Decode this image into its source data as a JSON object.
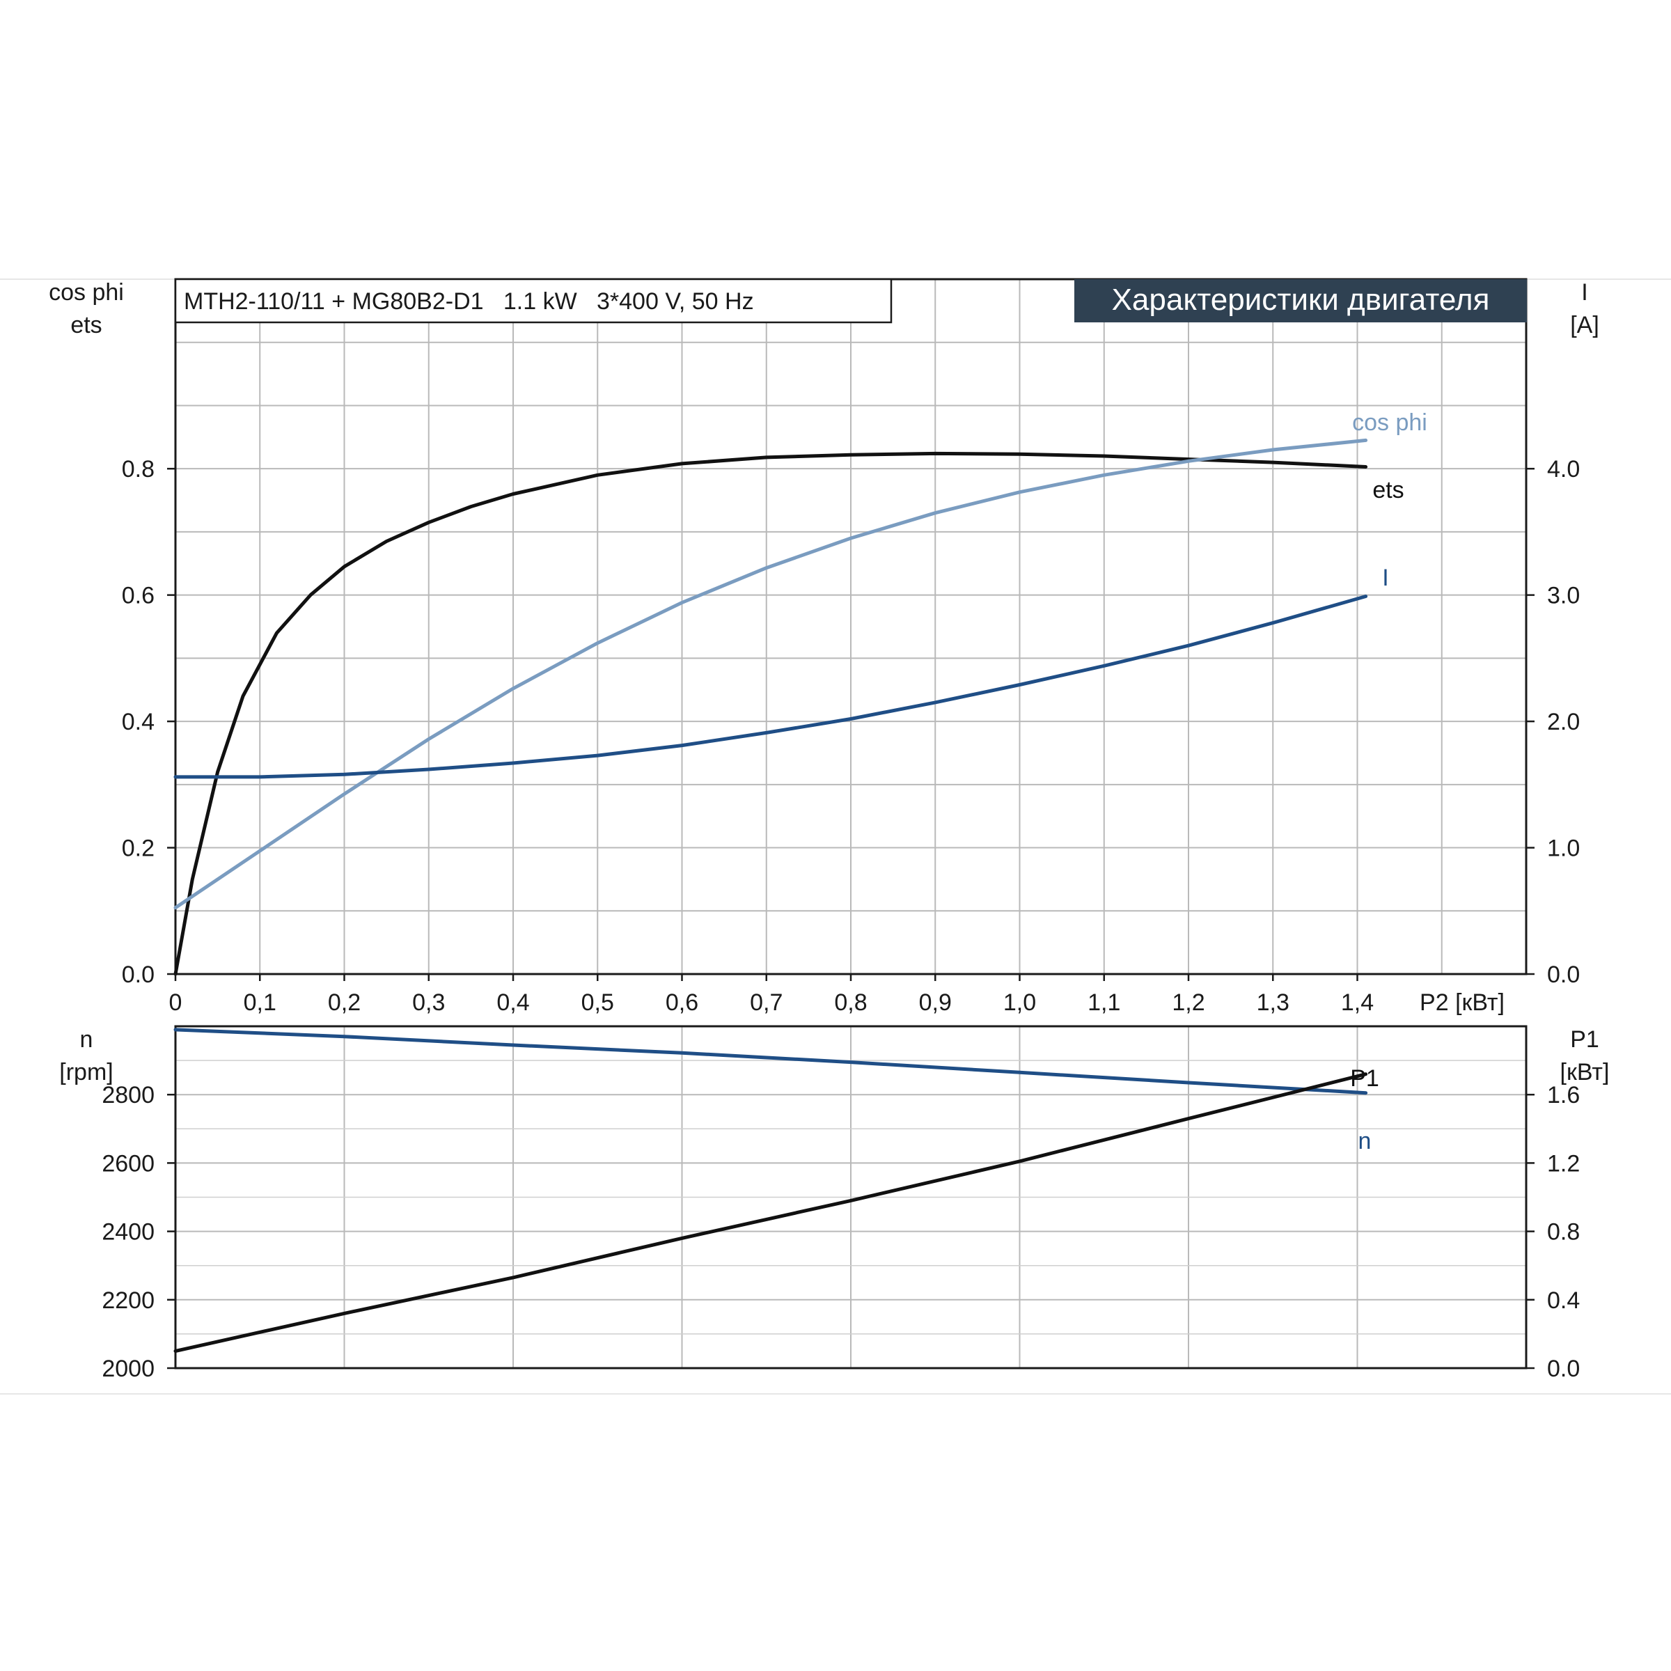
{
  "colors": {
    "ets": "#111111",
    "cos_phi": "#7a9cc0",
    "current": "#1f4e86",
    "speed": "#1f4e86",
    "p1": "#111111",
    "title_bg": "#2f4152",
    "title_fg": "#ffffff",
    "grid": "#b9b9b9"
  },
  "header": {
    "model": "MTH2-110/11 + MG80B2-D1   1.1 kW   3*400 V, 50 Hz",
    "title": "Характеристики двигателя"
  },
  "chart_data": [
    {
      "type": "line",
      "name": "upper",
      "x_label": "P2 [кВт]",
      "x_range": [
        0,
        1.6
      ],
      "x_ticks": [
        "0",
        "0,1",
        "0,2",
        "0,3",
        "0,4",
        "0,5",
        "0,6",
        "0,7",
        "0,8",
        "0,9",
        "1,0",
        "1,1",
        "1,2",
        "1,3",
        "1,4"
      ],
      "y_left_label": [
        "cos phi",
        "ets"
      ],
      "y_left_range": [
        0,
        1.1
      ],
      "y_left_ticks": [
        "0.0",
        "0.2",
        "0.4",
        "0.6",
        "0.8"
      ],
      "y_right_label": [
        "I",
        "[A]"
      ],
      "y_right_range": [
        0,
        5.5
      ],
      "y_right_ticks": [
        "0.0",
        "1.0",
        "2.0",
        "3.0",
        "4.0"
      ],
      "grid": true,
      "series": [
        {
          "name": "ets",
          "axis": "left",
          "x": [
            0,
            0.02,
            0.05,
            0.08,
            0.12,
            0.16,
            0.2,
            0.25,
            0.3,
            0.35,
            0.4,
            0.5,
            0.6,
            0.7,
            0.8,
            0.9,
            1.0,
            1.1,
            1.2,
            1.3,
            1.41
          ],
          "y": [
            0,
            0.15,
            0.32,
            0.44,
            0.54,
            0.6,
            0.645,
            0.685,
            0.715,
            0.74,
            0.76,
            0.79,
            0.808,
            0.818,
            0.822,
            0.824,
            0.823,
            0.82,
            0.815,
            0.81,
            0.803
          ]
        },
        {
          "name": "cos phi",
          "axis": "left",
          "x": [
            0,
            0.1,
            0.2,
            0.3,
            0.4,
            0.5,
            0.6,
            0.7,
            0.8,
            0.9,
            1.0,
            1.1,
            1.2,
            1.3,
            1.41
          ],
          "y": [
            0.105,
            0.195,
            0.285,
            0.372,
            0.452,
            0.524,
            0.588,
            0.643,
            0.69,
            0.73,
            0.763,
            0.79,
            0.812,
            0.83,
            0.845
          ]
        },
        {
          "name": "I",
          "axis": "right",
          "x": [
            0,
            0.1,
            0.2,
            0.3,
            0.4,
            0.5,
            0.6,
            0.7,
            0.8,
            0.9,
            1.0,
            1.1,
            1.2,
            1.3,
            1.41
          ],
          "y": [
            1.56,
            1.56,
            1.58,
            1.62,
            1.67,
            1.73,
            1.81,
            1.91,
            2.02,
            2.15,
            2.29,
            2.44,
            2.6,
            2.78,
            2.99
          ]
        }
      ]
    },
    {
      "type": "line",
      "name": "lower",
      "x_range": [
        0,
        1.6
      ],
      "y_left_label": [
        "n",
        "[rpm]"
      ],
      "y_left_range": [
        2000,
        3000
      ],
      "y_left_ticks": [
        "2000",
        "2200",
        "2400",
        "2600",
        "2800"
      ],
      "y_right_label": [
        "P1",
        "[кВт]"
      ],
      "y_right_range": [
        0,
        2.0
      ],
      "y_right_ticks": [
        "0.0",
        "0.4",
        "0.8",
        "1.2",
        "1.6"
      ],
      "grid": true,
      "series": [
        {
          "name": "n",
          "axis": "left",
          "x": [
            0,
            0.2,
            0.4,
            0.6,
            0.8,
            1.0,
            1.2,
            1.41
          ],
          "y": [
            2990,
            2970,
            2945,
            2922,
            2895,
            2865,
            2835,
            2805
          ]
        },
        {
          "name": "P1",
          "axis": "right",
          "x": [
            0,
            0.2,
            0.4,
            0.6,
            0.8,
            1.0,
            1.2,
            1.41
          ],
          "y": [
            0.1,
            0.32,
            0.53,
            0.76,
            0.98,
            1.21,
            1.46,
            1.72
          ]
        }
      ]
    }
  ]
}
